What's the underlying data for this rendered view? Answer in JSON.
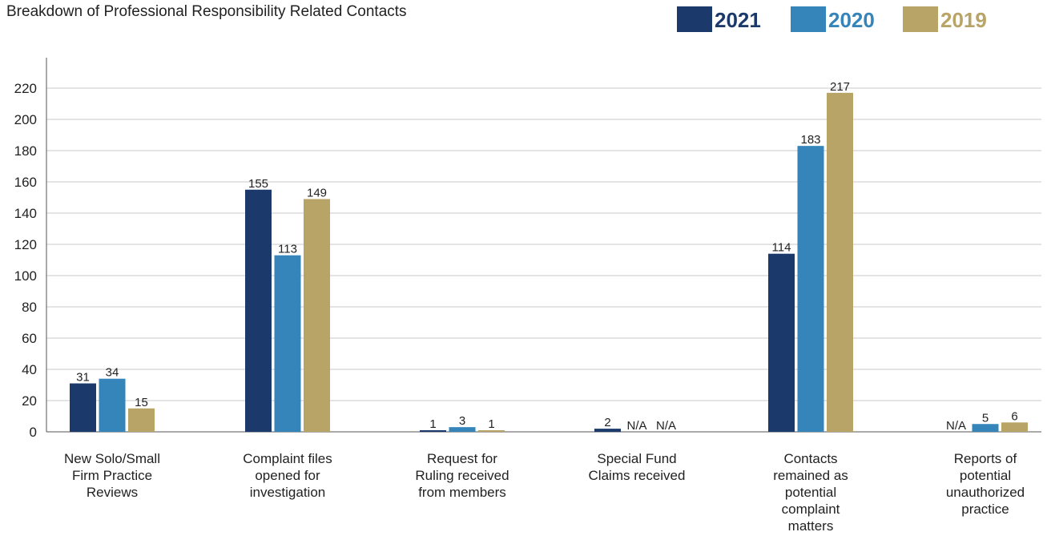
{
  "chart_data": {
    "type": "bar",
    "title": "Breakdown of Professional Responsibility Related Contacts",
    "xlabel": "",
    "ylabel": "",
    "ylim": [
      0,
      230
    ],
    "yticks": [
      0,
      20,
      40,
      60,
      80,
      100,
      120,
      140,
      160,
      180,
      200,
      220
    ],
    "grid": true,
    "legend_position": "top-right",
    "categories": [
      [
        "New Solo/Small",
        "Firm Practice",
        "Reviews"
      ],
      [
        "Complaint files",
        "opened for",
        "investigation"
      ],
      [
        "Request for",
        "Ruling received",
        "from members"
      ],
      [
        "Special Fund",
        "Claims received"
      ],
      [
        "Contacts",
        "remained as",
        "potential",
        "complaint",
        "matters"
      ],
      [
        "Reports of",
        "potential",
        "unauthorized",
        "practice"
      ]
    ],
    "series": [
      {
        "name": "2021",
        "color": "#1b3a6b",
        "values": [
          31,
          155,
          1,
          2,
          114,
          null
        ],
        "labels": [
          "31",
          "155",
          "1",
          "2",
          "114",
          "N/A"
        ]
      },
      {
        "name": "2020",
        "color": "#3585ba",
        "values": [
          34,
          113,
          3,
          null,
          183,
          5
        ],
        "labels": [
          "34",
          "113",
          "3",
          "N/A",
          "183",
          "5"
        ]
      },
      {
        "name": "2019",
        "color": "#b8a466",
        "values": [
          15,
          149,
          1,
          null,
          217,
          6
        ],
        "labels": [
          "15",
          "149",
          "1",
          "N/A",
          "217",
          "6"
        ]
      }
    ]
  }
}
